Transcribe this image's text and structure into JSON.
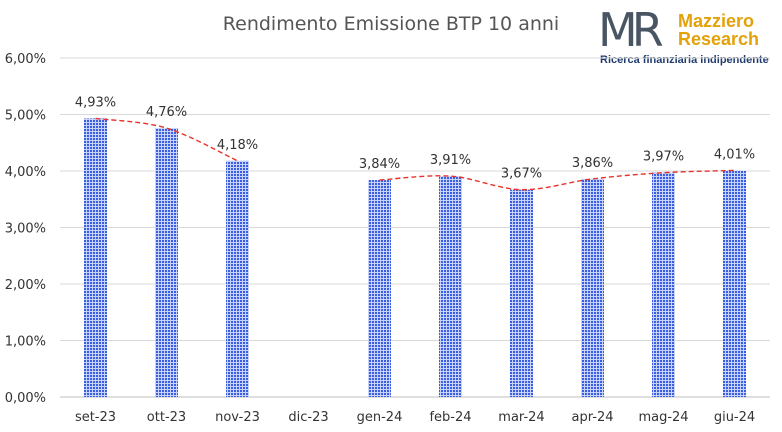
{
  "logo": {
    "mark": "MR",
    "name_line1": "Mazziero",
    "name_line2": "Research",
    "tagline": "Ricerca finanziaria indipendente"
  },
  "chart_data": {
    "type": "bar",
    "title": "Rendimento Emissione BTP 10 anni",
    "xlabel": "",
    "ylabel": "",
    "categories": [
      "set-23",
      "ott-23",
      "nov-23",
      "dic-23",
      "gen-24",
      "feb-24",
      "mar-24",
      "apr-24",
      "mag-24",
      "giu-24"
    ],
    "values": [
      4.93,
      4.76,
      4.18,
      null,
      3.84,
      3.91,
      3.67,
      3.86,
      3.97,
      4.01
    ],
    "data_labels": [
      "4,93%",
      "4,76%",
      "4,18%",
      "",
      "3,84%",
      "3,91%",
      "3,67%",
      "3,86%",
      "3,97%",
      "4,01%"
    ],
    "ylim": [
      0,
      6
    ],
    "yticks": [
      0,
      1,
      2,
      3,
      4,
      5,
      6
    ],
    "ytick_labels": [
      "0,00%",
      "1,00%",
      "2,00%",
      "3,00%",
      "4,00%",
      "5,00%",
      "6,00%"
    ],
    "grid": true,
    "trendline": true,
    "colors": {
      "bar": "#3b5ee0",
      "bar_light": "#c8d3fa",
      "trend": "#e8332a",
      "grid": "#d9d9d9",
      "text": "#333333",
      "title": "#555555"
    }
  }
}
